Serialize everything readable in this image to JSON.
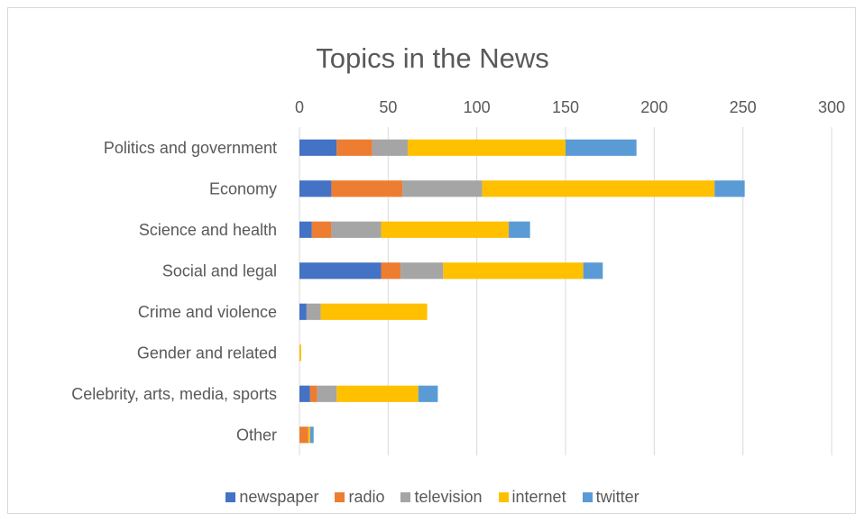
{
  "chart_data": {
    "type": "bar",
    "orientation": "horizontal",
    "stacked": true,
    "title": "Topics in the News",
    "xlim": [
      0,
      300
    ],
    "xticks": [
      0,
      50,
      100,
      150,
      200,
      250,
      300
    ],
    "x_axis_position": "top",
    "grid": true,
    "legend_position": "bottom",
    "categories": [
      "Politics and government",
      "Economy",
      "Science and health",
      "Social and legal",
      "Crime and violence",
      "Gender and related",
      "Celebrity, arts, media, sports",
      "Other"
    ],
    "series": [
      {
        "name": "newspaper",
        "color": "#4472c4",
        "values": [
          21,
          18,
          7,
          46,
          4,
          0,
          6,
          0
        ]
      },
      {
        "name": "radio",
        "color": "#ed7d31",
        "values": [
          20,
          40,
          11,
          11,
          0,
          0,
          4,
          5
        ]
      },
      {
        "name": "television",
        "color": "#a5a5a5",
        "values": [
          20,
          45,
          28,
          24,
          8,
          0,
          11,
          0
        ]
      },
      {
        "name": "internet",
        "color": "#ffc000",
        "values": [
          89,
          131,
          72,
          79,
          60,
          1,
          46,
          1
        ]
      },
      {
        "name": "twitter",
        "color": "#5b9bd5",
        "values": [
          40,
          17,
          12,
          11,
          0,
          0,
          11,
          2
        ]
      }
    ]
  }
}
